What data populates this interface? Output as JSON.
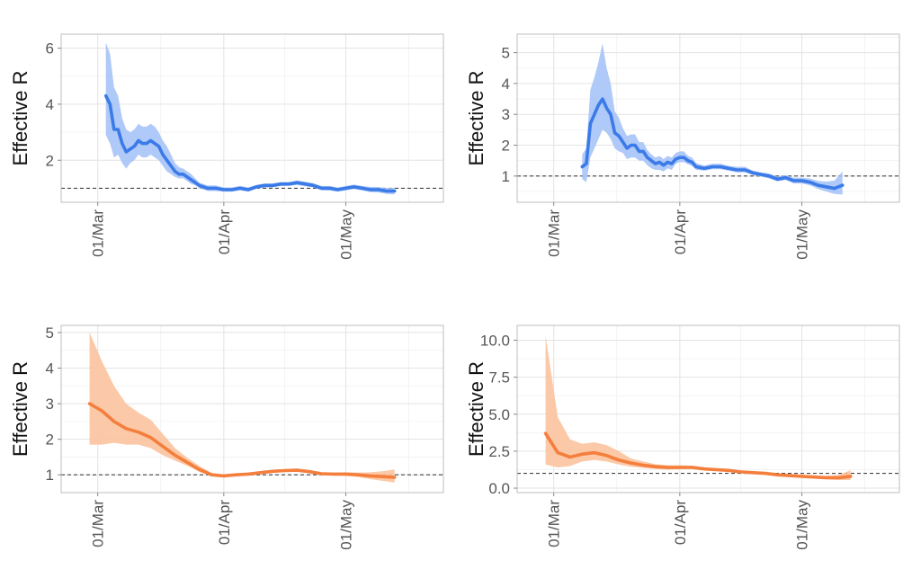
{
  "chart_data": [
    {
      "type": "line",
      "ylabel": "Effective R",
      "x_ticks": [
        "01/Mar",
        "01/Apr",
        "01/May"
      ],
      "y_ticks": [
        "2",
        "4",
        "6"
      ],
      "ylim": [
        0.5,
        6.5
      ],
      "xlim": [
        "2020-02-21",
        "2020-05-25"
      ],
      "reference_line": 1,
      "colors": {
        "line": "#3b7be8",
        "band": "#a6c3f7"
      },
      "series": [
        {
          "x": [
            "2020-03-03",
            "2020-03-04",
            "2020-03-05",
            "2020-03-06",
            "2020-03-07",
            "2020-03-08",
            "2020-03-09",
            "2020-03-10",
            "2020-03-11",
            "2020-03-12",
            "2020-03-13",
            "2020-03-14",
            "2020-03-15",
            "2020-03-16",
            "2020-03-17",
            "2020-03-18",
            "2020-03-19",
            "2020-03-20",
            "2020-03-21",
            "2020-03-22",
            "2020-03-23",
            "2020-03-24",
            "2020-03-25",
            "2020-03-26",
            "2020-03-28",
            "2020-03-30",
            "2020-04-01",
            "2020-04-03",
            "2020-04-05",
            "2020-04-07",
            "2020-04-09",
            "2020-04-11",
            "2020-04-13",
            "2020-04-15",
            "2020-04-17",
            "2020-04-19",
            "2020-04-21",
            "2020-04-23",
            "2020-04-25",
            "2020-04-27",
            "2020-04-29",
            "2020-05-01",
            "2020-05-03",
            "2020-05-05",
            "2020-05-07",
            "2020-05-09",
            "2020-05-11",
            "2020-05-13"
          ],
          "y": [
            4.3,
            4.0,
            3.1,
            3.1,
            2.6,
            2.3,
            2.4,
            2.5,
            2.7,
            2.6,
            2.6,
            2.7,
            2.6,
            2.5,
            2.2,
            2.0,
            1.8,
            1.6,
            1.5,
            1.5,
            1.4,
            1.3,
            1.2,
            1.1,
            1.0,
            1.0,
            0.95,
            0.95,
            1.0,
            0.95,
            1.05,
            1.1,
            1.1,
            1.15,
            1.15,
            1.2,
            1.15,
            1.1,
            1.0,
            1.0,
            0.95,
            1.0,
            1.05,
            1.0,
            0.95,
            0.95,
            0.9,
            0.9
          ],
          "lower": [
            2.9,
            2.6,
            2.1,
            2.2,
            1.9,
            1.7,
            1.9,
            2.0,
            2.2,
            2.1,
            2.1,
            2.2,
            2.1,
            2.0,
            1.8,
            1.6,
            1.5,
            1.4,
            1.35,
            1.35,
            1.25,
            1.15,
            1.1,
            1.0,
            0.9,
            0.9,
            0.88,
            0.88,
            0.92,
            0.88,
            0.98,
            1.03,
            1.03,
            1.08,
            1.08,
            1.12,
            1.07,
            1.03,
            0.93,
            0.92,
            0.88,
            0.92,
            0.97,
            0.92,
            0.86,
            0.85,
            0.8,
            0.78
          ],
          "upper": [
            6.2,
            5.8,
            4.6,
            4.3,
            3.5,
            3.1,
            3.0,
            3.1,
            3.3,
            3.2,
            3.2,
            3.3,
            3.2,
            3.0,
            2.7,
            2.5,
            2.2,
            1.9,
            1.75,
            1.7,
            1.6,
            1.5,
            1.35,
            1.2,
            1.1,
            1.1,
            1.03,
            1.03,
            1.08,
            1.03,
            1.12,
            1.17,
            1.17,
            1.22,
            1.22,
            1.28,
            1.23,
            1.18,
            1.08,
            1.08,
            1.03,
            1.08,
            1.13,
            1.08,
            1.05,
            1.05,
            1.0,
            1.02
          ]
        }
      ]
    },
    {
      "type": "line",
      "ylabel": "Effective R",
      "x_ticks": [
        "01/Mar",
        "01/Apr",
        "01/May"
      ],
      "y_ticks": [
        "1",
        "2",
        "3",
        "4",
        "5"
      ],
      "ylim": [
        0.15,
        5.6
      ],
      "xlim": [
        "2020-02-21",
        "2020-05-25"
      ],
      "reference_line": 1,
      "colors": {
        "line": "#3b7be8",
        "band": "#a6c3f7"
      },
      "series": [
        {
          "x": [
            "2020-03-08",
            "2020-03-09",
            "2020-03-10",
            "2020-03-11",
            "2020-03-12",
            "2020-03-13",
            "2020-03-14",
            "2020-03-15",
            "2020-03-16",
            "2020-03-17",
            "2020-03-18",
            "2020-03-19",
            "2020-03-20",
            "2020-03-21",
            "2020-03-22",
            "2020-03-23",
            "2020-03-24",
            "2020-03-25",
            "2020-03-26",
            "2020-03-27",
            "2020-03-28",
            "2020-03-29",
            "2020-03-30",
            "2020-03-31",
            "2020-04-01",
            "2020-04-02",
            "2020-04-03",
            "2020-04-04",
            "2020-04-05",
            "2020-04-07",
            "2020-04-09",
            "2020-04-11",
            "2020-04-13",
            "2020-04-15",
            "2020-04-17",
            "2020-04-19",
            "2020-04-21",
            "2020-04-23",
            "2020-04-25",
            "2020-04-27",
            "2020-04-29",
            "2020-05-01",
            "2020-05-03",
            "2020-05-05",
            "2020-05-07",
            "2020-05-09",
            "2020-05-11"
          ],
          "y": [
            1.3,
            1.4,
            2.7,
            3.0,
            3.3,
            3.5,
            3.2,
            3.0,
            2.4,
            2.3,
            2.1,
            1.9,
            2.0,
            2.0,
            1.8,
            1.8,
            1.6,
            1.5,
            1.4,
            1.45,
            1.35,
            1.45,
            1.4,
            1.55,
            1.6,
            1.6,
            1.5,
            1.45,
            1.3,
            1.25,
            1.3,
            1.3,
            1.25,
            1.2,
            1.2,
            1.1,
            1.05,
            1.0,
            0.9,
            0.95,
            0.85,
            0.85,
            0.8,
            0.7,
            0.65,
            0.6,
            0.7
          ],
          "lower": [
            0.9,
            0.8,
            1.6,
            1.9,
            2.2,
            2.5,
            2.4,
            2.2,
            1.9,
            1.8,
            1.75,
            1.55,
            1.6,
            1.6,
            1.5,
            1.5,
            1.35,
            1.25,
            1.2,
            1.2,
            1.15,
            1.25,
            1.2,
            1.4,
            1.45,
            1.45,
            1.38,
            1.33,
            1.2,
            1.18,
            1.22,
            1.22,
            1.18,
            1.12,
            1.12,
            1.03,
            0.98,
            0.92,
            0.83,
            0.87,
            0.76,
            0.76,
            0.7,
            0.58,
            0.5,
            0.42,
            0.4
          ],
          "upper": [
            1.7,
            1.9,
            3.8,
            4.2,
            4.7,
            5.3,
            4.5,
            4.0,
            3.1,
            2.9,
            2.55,
            2.3,
            2.35,
            2.35,
            2.1,
            2.1,
            1.85,
            1.7,
            1.6,
            1.65,
            1.55,
            1.65,
            1.6,
            1.75,
            1.8,
            1.8,
            1.65,
            1.6,
            1.42,
            1.34,
            1.4,
            1.4,
            1.33,
            1.3,
            1.3,
            1.18,
            1.12,
            1.08,
            0.98,
            1.03,
            0.95,
            0.95,
            0.92,
            0.84,
            0.82,
            0.85,
            1.15
          ]
        }
      ]
    },
    {
      "type": "line",
      "ylabel": "Effective R",
      "x_ticks": [
        "01/Mar",
        "01/Apr",
        "01/May"
      ],
      "y_ticks": [
        "1",
        "2",
        "3",
        "4",
        "5"
      ],
      "ylim": [
        0.5,
        5.2
      ],
      "xlim": [
        "2020-02-21",
        "2020-05-25"
      ],
      "reference_line": 1,
      "colors": {
        "line": "#f47f3d",
        "band": "#fbc39e"
      },
      "series": [
        {
          "x": [
            "2020-02-28",
            "2020-03-02",
            "2020-03-05",
            "2020-03-08",
            "2020-03-11",
            "2020-03-14",
            "2020-03-17",
            "2020-03-20",
            "2020-03-23",
            "2020-03-26",
            "2020-03-29",
            "2020-04-01",
            "2020-04-04",
            "2020-04-07",
            "2020-04-10",
            "2020-04-13",
            "2020-04-16",
            "2020-04-19",
            "2020-04-22",
            "2020-04-25",
            "2020-04-28",
            "2020-05-01",
            "2020-05-04",
            "2020-05-07",
            "2020-05-10",
            "2020-05-13"
          ],
          "y": [
            3.0,
            2.8,
            2.5,
            2.3,
            2.2,
            2.05,
            1.8,
            1.55,
            1.35,
            1.15,
            1.0,
            0.97,
            1.0,
            1.02,
            1.06,
            1.1,
            1.12,
            1.13,
            1.09,
            1.03,
            1.02,
            1.02,
            1.0,
            0.97,
            0.95,
            0.93
          ],
          "lower": [
            1.85,
            1.85,
            1.9,
            1.85,
            1.85,
            1.75,
            1.55,
            1.4,
            1.25,
            1.08,
            0.96,
            0.94,
            0.96,
            0.98,
            1.02,
            1.06,
            1.08,
            1.09,
            1.05,
            0.99,
            0.98,
            0.97,
            0.94,
            0.88,
            0.83,
            0.78
          ],
          "upper": [
            5.0,
            4.2,
            3.5,
            3.0,
            2.75,
            2.55,
            2.15,
            1.75,
            1.48,
            1.25,
            1.05,
            1.0,
            1.04,
            1.06,
            1.1,
            1.14,
            1.16,
            1.17,
            1.13,
            1.07,
            1.06,
            1.07,
            1.06,
            1.07,
            1.1,
            1.15
          ]
        }
      ]
    },
    {
      "type": "line",
      "ylabel": "Effective R",
      "x_ticks": [
        "01/Mar",
        "01/Apr",
        "01/May"
      ],
      "y_ticks": [
        "0.0",
        "2.5",
        "5.0",
        "7.5",
        "10.0"
      ],
      "ylim": [
        -0.3,
        11.0
      ],
      "xlim": [
        "2020-02-21",
        "2020-05-25"
      ],
      "reference_line": 1,
      "colors": {
        "line": "#f47f3d",
        "band": "#fbc39e"
      },
      "series": [
        {
          "x": [
            "2020-02-28",
            "2020-03-02",
            "2020-03-05",
            "2020-03-08",
            "2020-03-11",
            "2020-03-14",
            "2020-03-17",
            "2020-03-20",
            "2020-03-23",
            "2020-03-26",
            "2020-03-29",
            "2020-04-01",
            "2020-04-04",
            "2020-04-07",
            "2020-04-10",
            "2020-04-13",
            "2020-04-16",
            "2020-04-19",
            "2020-04-22",
            "2020-04-25",
            "2020-04-28",
            "2020-05-01",
            "2020-05-04",
            "2020-05-07",
            "2020-05-10",
            "2020-05-13"
          ],
          "y": [
            3.7,
            2.4,
            2.1,
            2.3,
            2.4,
            2.2,
            1.9,
            1.7,
            1.55,
            1.45,
            1.4,
            1.4,
            1.4,
            1.3,
            1.25,
            1.2,
            1.1,
            1.05,
            1.0,
            0.9,
            0.85,
            0.8,
            0.75,
            0.7,
            0.7,
            0.8
          ],
          "lower": [
            1.6,
            1.4,
            1.5,
            1.8,
            1.9,
            1.8,
            1.6,
            1.45,
            1.35,
            1.3,
            1.25,
            1.28,
            1.3,
            1.2,
            1.16,
            1.1,
            1.02,
            0.97,
            0.92,
            0.83,
            0.78,
            0.72,
            0.67,
            0.6,
            0.55,
            0.55
          ],
          "upper": [
            10.3,
            4.8,
            3.3,
            3.0,
            3.1,
            2.9,
            2.5,
            2.0,
            1.8,
            1.62,
            1.55,
            1.55,
            1.52,
            1.42,
            1.36,
            1.3,
            1.2,
            1.14,
            1.09,
            0.99,
            0.94,
            0.9,
            0.86,
            0.84,
            0.9,
            1.2
          ]
        }
      ]
    }
  ]
}
